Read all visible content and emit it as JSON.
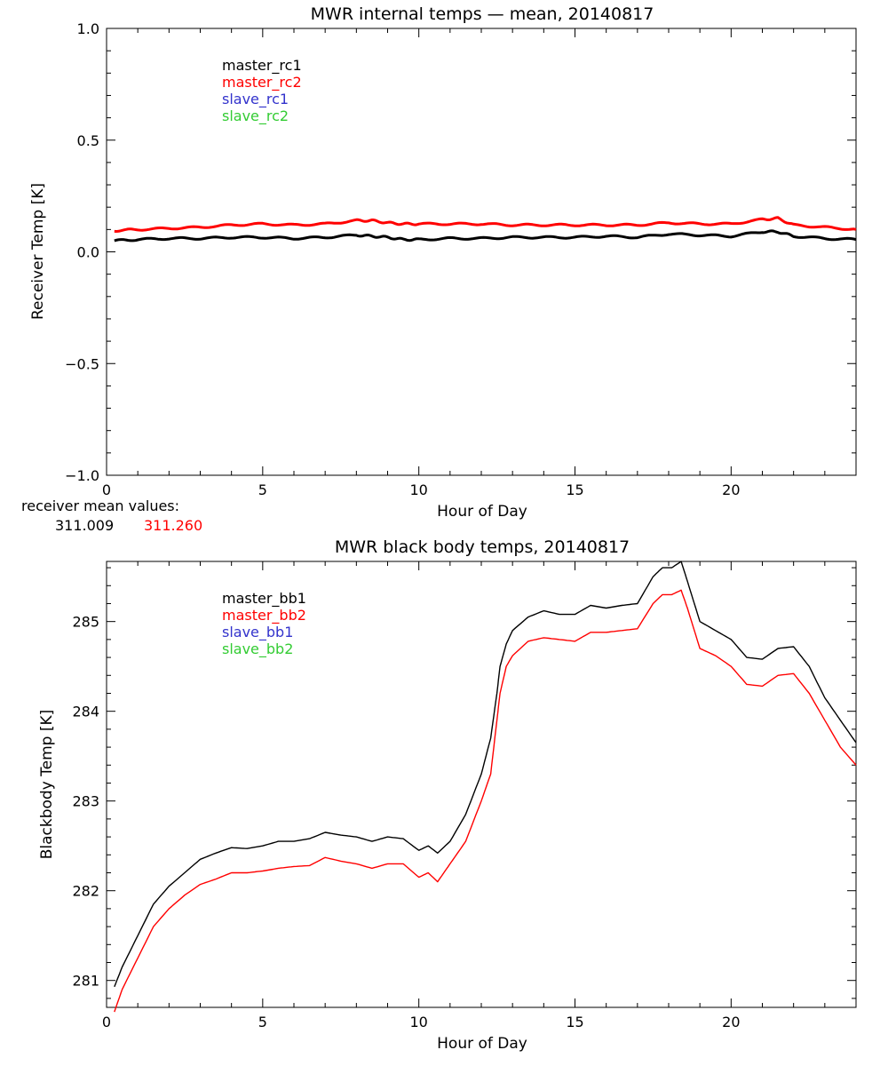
{
  "chart_data": [
    {
      "type": "line",
      "title": "MWR internal temps — mean, 20140817",
      "xlabel": "Hour of Day",
      "ylabel": "Receiver Temp [K]",
      "xlim": [
        0,
        24
      ],
      "ylim": [
        -1.0,
        1.0
      ],
      "xticks": [
        0,
        5,
        10,
        15,
        20
      ],
      "xtick_labels": [
        "0",
        "5",
        "10",
        "15",
        "20"
      ],
      "yticks": [
        -1.0,
        -0.5,
        0.0,
        0.5,
        1.0
      ],
      "ytick_labels": [
        "−1.0",
        "−0.5",
        "0.0",
        "0.5",
        "1.0"
      ],
      "legend_position": "top-left",
      "series": [
        {
          "name": "master_rc1",
          "color": "#000000",
          "x": [
            0.25,
            1,
            2,
            3,
            4,
            5,
            6,
            7,
            8,
            8.5,
            9,
            9.5,
            10,
            11,
            12,
            13,
            14,
            15,
            16,
            17,
            18,
            19,
            20,
            21,
            21.5,
            22,
            23,
            24
          ],
          "y": [
            0.05,
            0.055,
            0.06,
            0.06,
            0.065,
            0.065,
            0.06,
            0.065,
            0.075,
            0.07,
            0.065,
            0.055,
            0.055,
            0.06,
            0.06,
            0.065,
            0.065,
            0.065,
            0.07,
            0.065,
            0.08,
            0.075,
            0.07,
            0.09,
            0.09,
            0.07,
            0.06,
            0.055
          ]
        },
        {
          "name": "master_rc2",
          "color": "#ff0000",
          "x": [
            0.25,
            1,
            2,
            3,
            4,
            5,
            6,
            7,
            8,
            8.5,
            9,
            9.5,
            10,
            11,
            12,
            13,
            14,
            15,
            16,
            17,
            18,
            19,
            20,
            21,
            21.5,
            22,
            23,
            24
          ],
          "y": [
            0.095,
            0.1,
            0.105,
            0.11,
            0.12,
            0.125,
            0.12,
            0.125,
            0.14,
            0.14,
            0.13,
            0.125,
            0.125,
            0.125,
            0.125,
            0.12,
            0.12,
            0.12,
            0.12,
            0.12,
            0.13,
            0.125,
            0.125,
            0.145,
            0.15,
            0.12,
            0.11,
            0.1
          ]
        },
        {
          "name": "slave_rc1",
          "color": "#3333cc",
          "x": [],
          "y": []
        },
        {
          "name": "slave_rc2",
          "color": "#33cc33",
          "x": [],
          "y": []
        }
      ]
    },
    {
      "type": "line",
      "title": "MWR black body temps, 20140817",
      "xlabel": "Hour of Day",
      "ylabel": "Blackbody Temp [K]",
      "xlim": [
        0,
        24
      ],
      "ylim": [
        280.7,
        285.67
      ],
      "xticks": [
        0,
        5,
        10,
        15,
        20
      ],
      "xtick_labels": [
        "0",
        "5",
        "10",
        "15",
        "20"
      ],
      "yticks": [
        281,
        282,
        283,
        284,
        285
      ],
      "ytick_labels": [
        "281",
        "282",
        "283",
        "284",
        "285"
      ],
      "legend_position": "top-left",
      "series": [
        {
          "name": "master_bb1",
          "color": "#000000",
          "x": [
            0.25,
            0.5,
            1,
            1.5,
            2,
            2.5,
            3,
            3.5,
            4,
            4.5,
            5,
            5.5,
            6,
            6.5,
            7,
            7.5,
            8,
            8.5,
            9,
            9.5,
            10,
            10.3,
            10.6,
            11,
            11.5,
            12,
            12.3,
            12.5,
            12.6,
            12.8,
            13,
            13.5,
            14,
            14.5,
            15,
            15.5,
            16,
            16.5,
            17,
            17.5,
            17.8,
            18.1,
            18.4,
            18.6,
            19,
            19.5,
            20,
            20.5,
            21,
            21.5,
            22,
            22.5,
            23,
            23.5,
            24
          ],
          "y": [
            280.93,
            281.15,
            281.5,
            281.85,
            282.05,
            282.2,
            282.35,
            282.42,
            282.48,
            282.47,
            282.5,
            282.55,
            282.55,
            282.58,
            282.65,
            282.62,
            282.6,
            282.55,
            282.6,
            282.58,
            282.45,
            282.5,
            282.42,
            282.55,
            282.85,
            283.3,
            283.7,
            284.2,
            284.5,
            284.75,
            284.9,
            285.05,
            285.12,
            285.08,
            285.08,
            285.18,
            285.15,
            285.18,
            285.2,
            285.5,
            285.6,
            285.6,
            285.67,
            285.45,
            285.0,
            284.9,
            284.8,
            284.6,
            284.58,
            284.7,
            284.72,
            284.5,
            284.15,
            283.9,
            283.65
          ]
        },
        {
          "name": "master_bb2",
          "color": "#ff0000",
          "x": [
            0.25,
            0.5,
            1,
            1.5,
            2,
            2.5,
            3,
            3.5,
            4,
            4.5,
            5,
            5.5,
            6,
            6.5,
            7,
            7.5,
            8,
            8.5,
            9,
            9.5,
            10,
            10.3,
            10.6,
            11,
            11.5,
            12,
            12.3,
            12.5,
            12.6,
            12.8,
            13,
            13.5,
            14,
            14.5,
            15,
            15.5,
            16,
            16.5,
            17,
            17.5,
            17.8,
            18.1,
            18.4,
            18.6,
            19,
            19.5,
            20,
            20.5,
            21,
            21.5,
            22,
            22.5,
            23,
            23.5,
            24
          ],
          "y": [
            280.65,
            280.9,
            281.25,
            281.6,
            281.8,
            281.95,
            282.07,
            282.13,
            282.2,
            282.2,
            282.22,
            282.25,
            282.27,
            282.28,
            282.37,
            282.33,
            282.3,
            282.25,
            282.3,
            282.3,
            282.15,
            282.2,
            282.1,
            282.3,
            282.55,
            283.0,
            283.3,
            283.9,
            284.2,
            284.5,
            284.62,
            284.78,
            284.82,
            284.8,
            284.78,
            284.88,
            284.88,
            284.9,
            284.92,
            285.2,
            285.3,
            285.3,
            285.35,
            285.15,
            284.7,
            284.62,
            284.5,
            284.3,
            284.28,
            284.4,
            284.42,
            284.2,
            283.9,
            283.6,
            283.4
          ]
        },
        {
          "name": "slave_bb1",
          "color": "#3333cc",
          "x": [],
          "y": []
        },
        {
          "name": "slave_bb2",
          "color": "#33cc33",
          "x": [],
          "y": []
        }
      ]
    }
  ],
  "receiver_mean": {
    "label": "receiver mean values:",
    "value1": "311.009",
    "value1_color": "#000000",
    "value2": "311.260",
    "value2_color": "#ff0000"
  }
}
